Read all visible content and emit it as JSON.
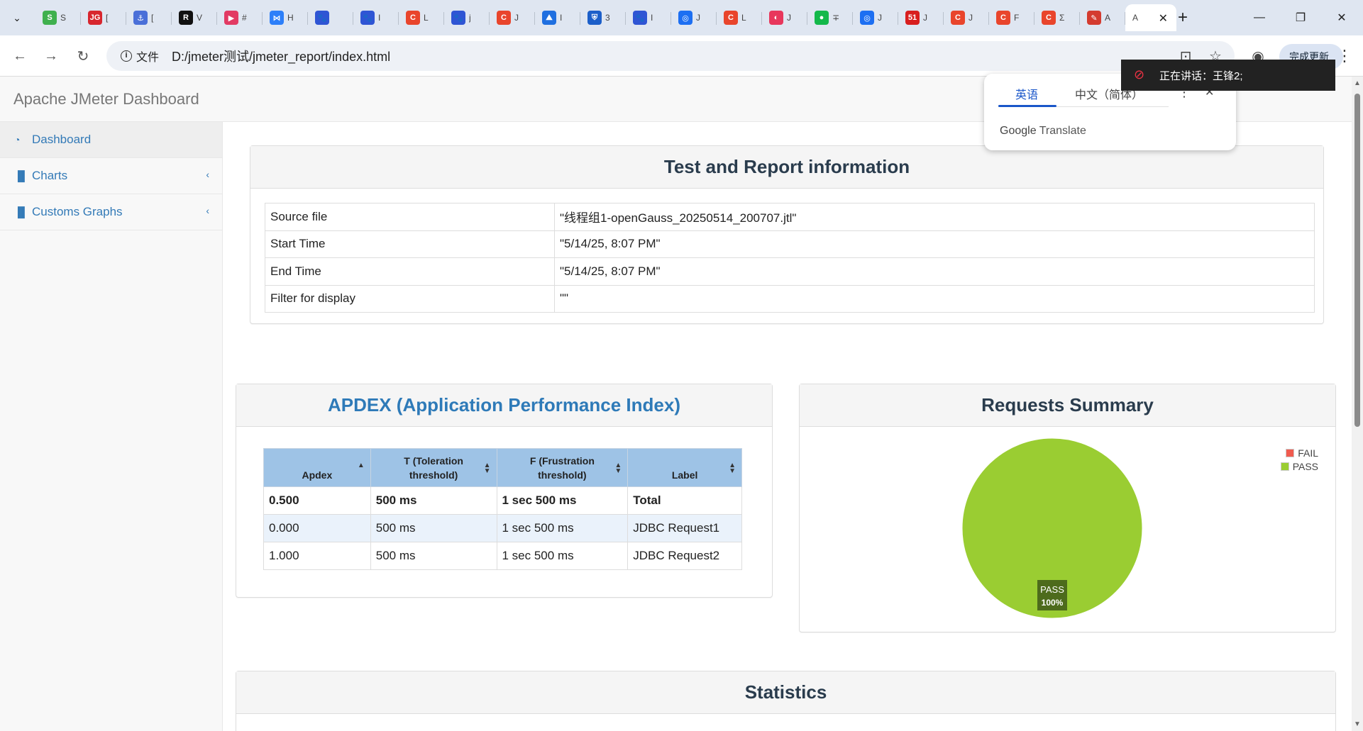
{
  "browser": {
    "tabs": [
      {
        "fav": "S",
        "color": "#3fb04e",
        "title": "S"
      },
      {
        "fav": "JG",
        "color": "#d8262e",
        "title": "["
      },
      {
        "fav": "⚓",
        "color": "#4a6fd8",
        "title": "["
      },
      {
        "fav": "R",
        "color": "#111111",
        "title": "V"
      },
      {
        "fav": "▶",
        "color": "#e23a63",
        "title": "#"
      },
      {
        "fav": "⋈",
        "color": "#2d7ff9",
        "title": "H"
      },
      {
        "fav": "🐾",
        "color": "#2f55d4",
        "title": ""
      },
      {
        "fav": "🐾",
        "color": "#2f55d4",
        "title": "I"
      },
      {
        "fav": "C",
        "color": "#e9452c",
        "title": "L"
      },
      {
        "fav": "🐾",
        "color": "#2f55d4",
        "title": "j"
      },
      {
        "fav": "C",
        "color": "#e9452c",
        "title": "J"
      },
      {
        "fav": "⛰",
        "color": "#1f6fe0",
        "title": "I"
      },
      {
        "fav": "⛨",
        "color": "#1c5fc9",
        "title": "3"
      },
      {
        "fav": "🐾",
        "color": "#2f55d4",
        "title": "I"
      },
      {
        "fav": "◎",
        "color": "#1d6ff2",
        "title": "J"
      },
      {
        "fav": "C",
        "color": "#e9452c",
        "title": "L"
      },
      {
        "fav": "◐",
        "color": "#e8375c",
        "title": "J"
      },
      {
        "fav": "●",
        "color": "#13b84a",
        "title": "∓"
      },
      {
        "fav": "◎",
        "color": "#1d6ff2",
        "title": "J"
      },
      {
        "fav": "51",
        "color": "#d81e1e",
        "title": "J"
      },
      {
        "fav": "C",
        "color": "#e9452c",
        "title": "J"
      },
      {
        "fav": "C",
        "color": "#e9452c",
        "title": "F"
      },
      {
        "fav": "C",
        "color": "#e9452c",
        "title": "Σ"
      },
      {
        "fav": "✎",
        "color": "#d43b2f",
        "title": "A"
      }
    ],
    "active_tab": {
      "title": "A"
    },
    "address": {
      "scheme_label": "文件",
      "url": "D:/jmeter测试/jmeter_report/index.html"
    },
    "update_label": "完成更新"
  },
  "translate_popup": {
    "lang_selected": "英语",
    "lang_other": "中文（简体）",
    "brand_google": "Google",
    "brand_translate": "Translate"
  },
  "speaker_overlay": {
    "text": "正在讲话：王锋2;"
  },
  "app": {
    "brand": "Apache JMeter Dashboard",
    "sidebar": [
      {
        "label": "Dashboard",
        "icon": "dashboard-icon"
      },
      {
        "label": "Charts",
        "icon": "bar-chart-icon"
      },
      {
        "label": "Customs Graphs",
        "icon": "bar-chart-icon"
      }
    ]
  },
  "test_info": {
    "title": "Test and Report information",
    "rows": [
      {
        "key": "Source file",
        "value": "\"线程组1-openGauss_20250514_200707.jtl\""
      },
      {
        "key": "Start Time",
        "value": "\"5/14/25, 8:07 PM\""
      },
      {
        "key": "End Time",
        "value": "\"5/14/25, 8:07 PM\""
      },
      {
        "key": "Filter for display",
        "value": "\"\""
      }
    ]
  },
  "apdex": {
    "title": "APDEX (Application Performance Index)",
    "headers": [
      "Apdex",
      "T (Toleration threshold)",
      "F (Frustration threshold)",
      "Label"
    ],
    "rows": [
      [
        "0.500",
        "500 ms",
        "1 sec 500 ms",
        "Total"
      ],
      [
        "0.000",
        "500 ms",
        "1 sec 500 ms",
        "JDBC Request1"
      ],
      [
        "1.000",
        "500 ms",
        "1 sec 500 ms",
        "JDBC Request2"
      ]
    ]
  },
  "requests_summary": {
    "title": "Requests Summary",
    "chart_data": {
      "type": "pie",
      "categories": [
        "FAIL",
        "PASS"
      ],
      "values": [
        0,
        100
      ],
      "colors": [
        "#f05b4f",
        "#9acd32"
      ],
      "slice_label_name": "PASS",
      "slice_label_value": "100%",
      "legend_position": "top-right"
    }
  },
  "statistics": {
    "title": "Statistics"
  }
}
